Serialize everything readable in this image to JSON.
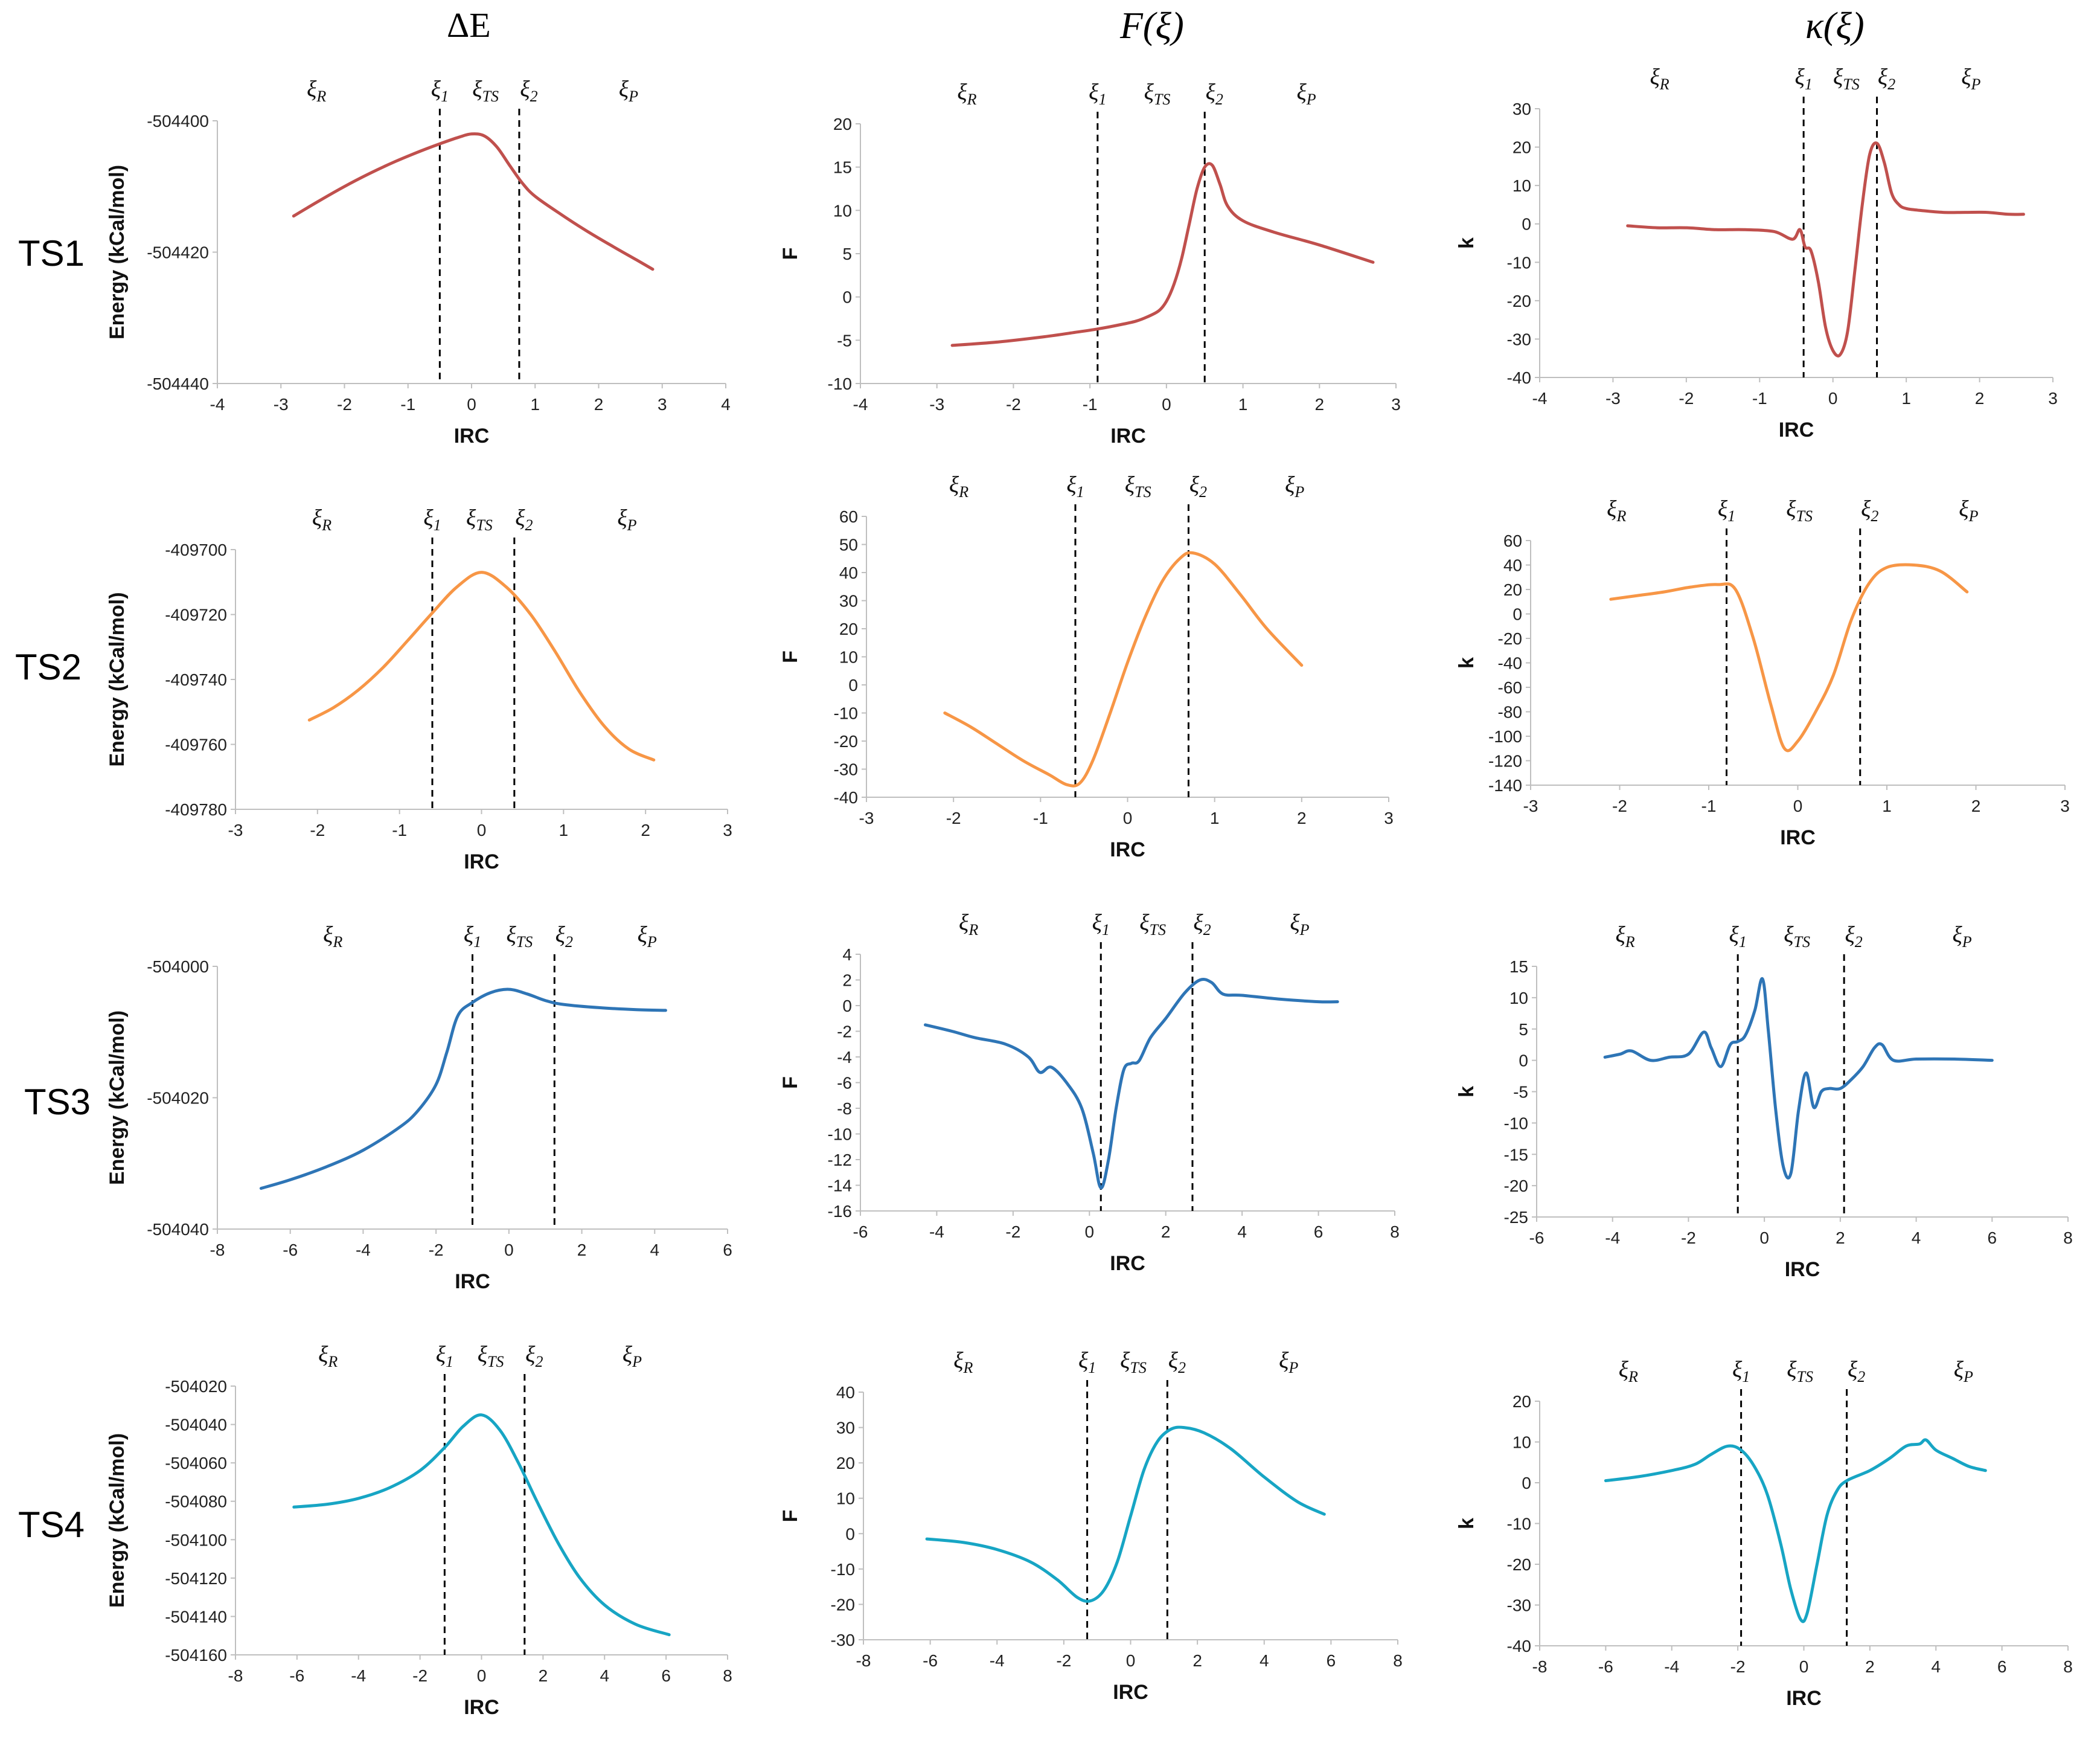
{
  "column_titles": [
    "ΔE",
    "F(ξ)",
    "κ(ξ)"
  ],
  "row_labels": [
    "TS1",
    "TS2",
    "TS3",
    "TS4"
  ],
  "region_labels": [
    {
      "base": "ξ",
      "sub": "R"
    },
    {
      "base": "ξ",
      "sub": "1"
    },
    {
      "base": "ξ",
      "sub": "TS"
    },
    {
      "base": "ξ",
      "sub": "2"
    },
    {
      "base": "ξ",
      "sub": "P"
    }
  ],
  "chart_data": [
    {
      "id": "TS1-dE",
      "type": "line",
      "xlabel": "IRC",
      "ylabel": "Energy (kCal/mol)",
      "color": "#c0504d",
      "xlim": [
        -4,
        4
      ],
      "xticks": [
        -4,
        -3,
        -2,
        -1,
        0,
        1,
        2,
        3,
        4
      ],
      "ylim": [
        -504440,
        -504400
      ],
      "yticks": [
        -504440,
        -504420,
        -504400
      ],
      "vlines": [
        -0.5,
        0.75
      ],
      "x": [
        -2.8,
        -2.4,
        -2.0,
        -1.6,
        -1.2,
        -0.8,
        -0.5,
        -0.2,
        0.0,
        0.2,
        0.4,
        0.6,
        0.8,
        1.0,
        1.4,
        1.8,
        2.2,
        2.6,
        2.85
      ],
      "y": [
        -504414.5,
        -504412.2,
        -504410.0,
        -504408.0,
        -504406.2,
        -504404.6,
        -504403.5,
        -504402.5,
        -504402.0,
        -504402.3,
        -504404.0,
        -504406.8,
        -504409.5,
        -504411.5,
        -504414.2,
        -504416.7,
        -504419.0,
        -504421.2,
        -504422.6
      ]
    },
    {
      "id": "TS1-F",
      "type": "line",
      "xlabel": "IRC",
      "ylabel": "F",
      "color": "#c0504d",
      "xlim": [
        -4,
        3
      ],
      "xticks": [
        -4,
        -3,
        -2,
        -1,
        0,
        1,
        2,
        3
      ],
      "ylim": [
        -10,
        20
      ],
      "yticks": [
        -10,
        -5,
        0,
        5,
        10,
        15,
        20
      ],
      "vlines": [
        -0.9,
        0.5
      ],
      "x": [
        -2.8,
        -2.2,
        -1.6,
        -1.2,
        -0.9,
        -0.6,
        -0.4,
        -0.25,
        -0.1,
        0.0,
        0.1,
        0.2,
        0.3,
        0.4,
        0.5,
        0.6,
        0.7,
        0.8,
        1.0,
        1.4,
        2.0,
        2.7
      ],
      "y": [
        -5.6,
        -5.2,
        -4.6,
        -4.1,
        -3.7,
        -3.2,
        -2.8,
        -2.3,
        -1.6,
        -0.5,
        1.5,
        4.5,
        8.5,
        12.5,
        15.0,
        15.2,
        13.0,
        10.5,
        8.8,
        7.5,
        6.0,
        4.0
      ]
    },
    {
      "id": "TS1-k",
      "type": "line",
      "xlabel": "IRC",
      "ylabel": "k",
      "color": "#c0504d",
      "xlim": [
        -4,
        3
      ],
      "xticks": [
        -4,
        -3,
        -2,
        -1,
        0,
        1,
        2,
        3
      ],
      "ylim": [
        -40,
        30
      ],
      "yticks": [
        -40,
        -30,
        -20,
        -10,
        0,
        10,
        20,
        30
      ],
      "vlines": [
        -0.4,
        0.6
      ],
      "x": [
        -2.8,
        -2.4,
        -2.0,
        -1.6,
        -1.2,
        -0.8,
        -0.55,
        -0.45,
        -0.38,
        -0.3,
        -0.2,
        -0.1,
        0.0,
        0.1,
        0.2,
        0.3,
        0.4,
        0.5,
        0.6,
        0.7,
        0.8,
        0.9,
        1.0,
        1.2,
        1.5,
        1.8,
        2.1,
        2.4,
        2.6
      ],
      "y": [
        -0.5,
        -1.0,
        -1.0,
        -1.5,
        -1.5,
        -2.0,
        -4.0,
        -1.5,
        -6.0,
        -7.0,
        -15.0,
        -27.0,
        -33.0,
        -34.0,
        -28.0,
        -12.0,
        5.0,
        18.0,
        21.0,
        16.0,
        8.0,
        5.0,
        4.0,
        3.5,
        3.0,
        3.0,
        3.0,
        2.5,
        2.5
      ]
    },
    {
      "id": "TS2-dE",
      "type": "line",
      "xlabel": "IRC",
      "ylabel": "Energy (kCal/mol)",
      "color": "#f79646",
      "xlim": [
        -3,
        3
      ],
      "xticks": [
        -3,
        -2,
        -1,
        0,
        1,
        2,
        3
      ],
      "ylim": [
        -409780,
        -409700
      ],
      "yticks": [
        -409780,
        -409760,
        -409740,
        -409720,
        -409700
      ],
      "vlines": [
        -0.6,
        0.4
      ],
      "x": [
        -2.1,
        -1.8,
        -1.5,
        -1.2,
        -0.9,
        -0.6,
        -0.3,
        0.0,
        0.3,
        0.6,
        0.9,
        1.2,
        1.5,
        1.8,
        2.1
      ],
      "y": [
        -409752.5,
        -409748.6,
        -409743.2,
        -409736.3,
        -409728.0,
        -409719.5,
        -409711.5,
        -409707.0,
        -409711.5,
        -409720.0,
        -409731.5,
        -409744.0,
        -409754.5,
        -409761.5,
        -409764.8
      ]
    },
    {
      "id": "TS2-F",
      "type": "line",
      "xlabel": "IRC",
      "ylabel": "F",
      "color": "#f79646",
      "xlim": [
        -3,
        3
      ],
      "xticks": [
        -3,
        -2,
        -1,
        0,
        1,
        2,
        3
      ],
      "ylim": [
        -40,
        60
      ],
      "yticks": [
        -40,
        -30,
        -20,
        -10,
        0,
        10,
        20,
        30,
        40,
        50,
        60
      ],
      "vlines": [
        -0.6,
        0.7
      ],
      "x": [
        -2.1,
        -1.8,
        -1.5,
        -1.2,
        -0.9,
        -0.7,
        -0.55,
        -0.4,
        -0.2,
        0.0,
        0.2,
        0.4,
        0.6,
        0.75,
        1.0,
        1.3,
        1.6,
        2.0
      ],
      "y": [
        -10.0,
        -15.0,
        -21.0,
        -27.0,
        -32.0,
        -35.5,
        -35.0,
        -27.0,
        -10.0,
        8.0,
        24.0,
        37.0,
        45.0,
        47.0,
        43.0,
        32.0,
        20.0,
        7.0
      ]
    },
    {
      "id": "TS2-k",
      "type": "line",
      "xlabel": "IRC",
      "ylabel": "k",
      "color": "#f79646",
      "xlim": [
        -3,
        3
      ],
      "xticks": [
        -3,
        -2,
        -1,
        0,
        1,
        2,
        3
      ],
      "ylim": [
        -140,
        60
      ],
      "yticks": [
        -140,
        -120,
        -100,
        -80,
        -60,
        -40,
        -20,
        0,
        20,
        40,
        60
      ],
      "vlines": [
        -0.8,
        0.7
      ],
      "x": [
        -2.1,
        -1.8,
        -1.5,
        -1.2,
        -0.9,
        -0.7,
        -0.5,
        -0.3,
        -0.15,
        0.0,
        0.2,
        0.4,
        0.6,
        0.8,
        1.0,
        1.3,
        1.6,
        1.9
      ],
      "y": [
        12.0,
        15.0,
        18.0,
        22.0,
        24.0,
        20.0,
        -20.0,
        -75.0,
        -110.0,
        -104.0,
        -80.0,
        -50.0,
        -5.0,
        25.0,
        38.0,
        40.0,
        35.0,
        18.0
      ]
    },
    {
      "id": "TS3-dE",
      "type": "line",
      "xlabel": "IRC",
      "ylabel": "Energy (kCal/mol)",
      "color": "#2e75b6",
      "xlim": [
        -8,
        6
      ],
      "xticks": [
        -8,
        -6,
        -4,
        -2,
        0,
        2,
        4,
        6
      ],
      "ylim": [
        -504040,
        -504000
      ],
      "yticks": [
        -504040,
        -504020,
        -504000
      ],
      "vlines": [
        -1.0,
        1.25
      ],
      "x": [
        -6.8,
        -6.0,
        -5.0,
        -4.0,
        -3.0,
        -2.5,
        -2.0,
        -1.7,
        -1.4,
        -1.0,
        -0.5,
        0.0,
        0.5,
        1.0,
        1.5,
        2.5,
        3.5,
        4.3
      ],
      "y": [
        -504033.8,
        -504032.5,
        -504030.5,
        -504028.0,
        -504024.5,
        -504022.0,
        -504018.0,
        -504013.0,
        -504007.5,
        -504005.5,
        -504004.0,
        -504003.5,
        -504004.2,
        -504005.2,
        -504005.8,
        -504006.3,
        -504006.6,
        -504006.7
      ]
    },
    {
      "id": "TS3-F",
      "type": "line",
      "xlabel": "IRC",
      "ylabel": "F",
      "color": "#2e75b6",
      "xlim": [
        -6,
        8
      ],
      "xticks": [
        -6,
        -4,
        -2,
        0,
        2,
        4,
        6,
        8
      ],
      "ylim": [
        -16,
        4
      ],
      "yticks": [
        -16,
        -14,
        -12,
        -10,
        -8,
        -6,
        -4,
        -2,
        0,
        2,
        4
      ],
      "vlines": [
        0.3,
        2.7
      ],
      "x": [
        -4.3,
        -3.6,
        -3.0,
        -2.2,
        -1.6,
        -1.3,
        -1.0,
        -0.6,
        -0.2,
        0.1,
        0.3,
        0.5,
        0.7,
        0.9,
        1.1,
        1.3,
        1.6,
        2.0,
        2.5,
        2.9,
        3.2,
        3.5,
        4.0,
        5.0,
        6.0,
        6.5
      ],
      "y": [
        -1.5,
        -2.0,
        -2.5,
        -3.0,
        -4.0,
        -5.2,
        -4.8,
        -6.0,
        -8.0,
        -11.5,
        -14.2,
        -12.0,
        -8.0,
        -5.0,
        -4.5,
        -4.3,
        -2.5,
        -1.0,
        1.0,
        2.0,
        1.8,
        0.9,
        0.8,
        0.5,
        0.3,
        0.3
      ]
    },
    {
      "id": "TS3-k",
      "type": "line",
      "xlabel": "IRC",
      "ylabel": "k",
      "color": "#2e75b6",
      "xlim": [
        -6,
        8
      ],
      "xticks": [
        -6,
        -4,
        -2,
        0,
        2,
        4,
        6,
        8
      ],
      "ylim": [
        -25,
        15
      ],
      "yticks": [
        -25,
        -20,
        -15,
        -10,
        -5,
        0,
        5,
        10,
        15
      ],
      "vlines": [
        -0.7,
        2.1
      ],
      "x": [
        -4.2,
        -3.8,
        -3.5,
        -3.0,
        -2.5,
        -2.0,
        -1.6,
        -1.4,
        -1.15,
        -0.9,
        -0.7,
        -0.5,
        -0.25,
        -0.05,
        0.1,
        0.3,
        0.5,
        0.7,
        0.9,
        1.1,
        1.3,
        1.5,
        1.7,
        2.0,
        2.3,
        2.6,
        2.9,
        3.1,
        3.4,
        4.0,
        5.0,
        6.0
      ],
      "y": [
        0.5,
        1.0,
        1.5,
        0.0,
        0.5,
        1.0,
        4.5,
        2.0,
        -1.0,
        2.5,
        3.0,
        4.0,
        8.0,
        13.0,
        5.0,
        -8.0,
        -17.0,
        -18.0,
        -8.0,
        -2.0,
        -7.5,
        -5.0,
        -4.5,
        -4.5,
        -3.0,
        -1.0,
        2.0,
        2.5,
        0.0,
        0.2,
        0.2,
        0.0
      ]
    },
    {
      "id": "TS4-dE",
      "type": "line",
      "xlabel": "IRC",
      "ylabel": "Energy (kCal/mol)",
      "color": "#17a5c4",
      "xlim": [
        -8,
        8
      ],
      "xticks": [
        -8,
        -6,
        -4,
        -2,
        0,
        2,
        4,
        6,
        8
      ],
      "ylim": [
        -504160,
        -504020
      ],
      "yticks": [
        -504160,
        -504140,
        -504120,
        -504100,
        -504080,
        -504060,
        -504040,
        -504020
      ],
      "vlines": [
        -1.2,
        1.4
      ],
      "x": [
        -6.1,
        -5.0,
        -4.0,
        -3.0,
        -2.0,
        -1.2,
        -0.6,
        0.0,
        0.6,
        1.2,
        1.8,
        2.5,
        3.2,
        4.0,
        5.0,
        6.1
      ],
      "y": [
        -504083.0,
        -504081.5,
        -504078.5,
        -504073.0,
        -504064.0,
        -504052.0,
        -504041.0,
        -504035.0,
        -504043.0,
        -504060.0,
        -504080.0,
        -504102.0,
        -504120.0,
        -504134.0,
        -504144.0,
        -504149.5
      ]
    },
    {
      "id": "TS4-F",
      "type": "line",
      "xlabel": "IRC",
      "ylabel": "F",
      "color": "#17a5c4",
      "xlim": [
        -8,
        8
      ],
      "xticks": [
        -8,
        -6,
        -4,
        -2,
        0,
        2,
        4,
        6,
        8
      ],
      "ylim": [
        -30,
        40
      ],
      "yticks": [
        -30,
        -20,
        -10,
        0,
        10,
        20,
        30,
        40
      ],
      "vlines": [
        -1.3,
        1.1
      ],
      "x": [
        -6.1,
        -5.0,
        -4.0,
        -3.0,
        -2.2,
        -1.6,
        -1.2,
        -0.8,
        -0.4,
        0.0,
        0.4,
        0.8,
        1.2,
        1.6,
        2.2,
        3.0,
        4.0,
        5.0,
        5.8
      ],
      "y": [
        -1.5,
        -2.5,
        -4.5,
        -8.0,
        -13.0,
        -18.0,
        -19.0,
        -16.0,
        -8.0,
        5.0,
        18.0,
        26.0,
        29.5,
        30.0,
        28.5,
        24.0,
        16.0,
        9.0,
        5.5
      ]
    },
    {
      "id": "TS4-k",
      "type": "line",
      "xlabel": "IRC",
      "ylabel": "k",
      "color": "#17a5c4",
      "xlim": [
        -8,
        8
      ],
      "xticks": [
        -8,
        -6,
        -4,
        -2,
        0,
        2,
        4,
        6,
        8
      ],
      "ylim": [
        -40,
        20
      ],
      "yticks": [
        -40,
        -30,
        -20,
        -10,
        0,
        10,
        20
      ],
      "vlines": [
        -1.9,
        1.3
      ],
      "x": [
        -6.0,
        -5.0,
        -4.0,
        -3.3,
        -2.8,
        -2.3,
        -1.9,
        -1.5,
        -1.1,
        -0.7,
        -0.4,
        -0.1,
        0.1,
        0.4,
        0.7,
        1.0,
        1.3,
        2.0,
        2.6,
        3.1,
        3.5,
        3.7,
        4.0,
        4.5,
        5.0,
        5.5
      ],
      "y": [
        0.5,
        1.5,
        3.0,
        4.5,
        7.0,
        9.0,
        8.0,
        4.0,
        -3.0,
        -15.0,
        -26.0,
        -33.5,
        -32.0,
        -20.0,
        -8.0,
        -2.0,
        0.5,
        3.0,
        6.0,
        9.0,
        9.5,
        10.5,
        8.0,
        6.0,
        4.0,
        3.0
      ]
    }
  ]
}
